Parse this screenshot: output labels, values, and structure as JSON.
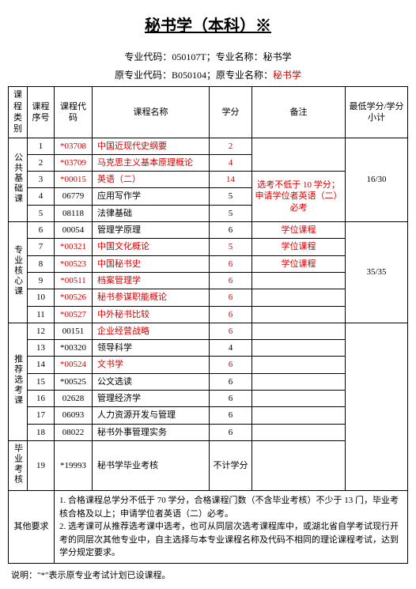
{
  "title": "秘书学（本科）※",
  "meta": {
    "line1": "专业代码：050107T；专业名称：秘书学",
    "line2_prefix": "原专业代码：B050104；原专业名称：",
    "line2_red": "秘书学"
  },
  "headers": {
    "type": "课程类别",
    "seq": "课程序号",
    "code": "课程代码",
    "name": "课程名称",
    "credit": "学分",
    "remark": "备注",
    "min": "最低学分/学分小计"
  },
  "groups": [
    {
      "label": "公共基础课",
      "min": "16/30",
      "remark_span": "选考不低于 10 学分；申请学位者英语（二）必考",
      "rows": [
        {
          "seq": "1",
          "code": "*03708",
          "name": "中国近现代史纲要",
          "credit": "2",
          "red": true
        },
        {
          "seq": "2",
          "code": "*03709",
          "name": "马克思主义基本原理概论",
          "credit": "4",
          "red": true
        },
        {
          "seq": "3",
          "code": "*00015",
          "name": "英语（二）",
          "credit": "14",
          "red": true
        },
        {
          "seq": "4",
          "code": "06779",
          "name": "应用写作学",
          "credit": "5",
          "red": false
        },
        {
          "seq": "5",
          "code": "08118",
          "name": "法律基础",
          "credit": "5",
          "red": false
        }
      ]
    },
    {
      "label": "专业核心课",
      "min": "35/35",
      "rows": [
        {
          "seq": "6",
          "code": "00054",
          "name": "管理学原理",
          "credit": "6",
          "remark": "学位课程",
          "red": false,
          "remark_red": true
        },
        {
          "seq": "7",
          "code": "*00321",
          "name": "中国文化概论",
          "credit": "5",
          "remark": "学位课程",
          "red": true,
          "remark_red": true
        },
        {
          "seq": "8",
          "code": "*00523",
          "name": "中国秘书史",
          "credit": "6",
          "remark": "学位课程",
          "red": true,
          "remark_red": true
        },
        {
          "seq": "9",
          "code": "*00511",
          "name": "档案管理学",
          "credit": "6",
          "remark": "",
          "red": true
        },
        {
          "seq": "10",
          "code": "*00526",
          "name": "秘书参谋职能概论",
          "credit": "6",
          "remark": "",
          "red": true
        },
        {
          "seq": "11",
          "code": "*00527",
          "name": "中外秘书比较",
          "credit": "6",
          "remark": "",
          "red": true
        }
      ]
    },
    {
      "label": "推荐选考课",
      "min": "",
      "rows": [
        {
          "seq": "12",
          "code": "00151",
          "name": "企业经营战略",
          "credit": "6",
          "red": false,
          "name_red": true,
          "credit_red": true
        },
        {
          "seq": "13",
          "code": "*00320",
          "name": "领导科学",
          "credit": "4",
          "red": false
        },
        {
          "seq": "14",
          "code": "*00524",
          "name": "文书学",
          "credit": "6",
          "red": true
        },
        {
          "seq": "15",
          "code": "*00525",
          "name": "公文选读",
          "credit": "6",
          "red": false
        },
        {
          "seq": "16",
          "code": "02628",
          "name": "管理经济学",
          "credit": "6",
          "red": false
        },
        {
          "seq": "17",
          "code": "06093",
          "name": "人力资源开发与管理",
          "credit": "6",
          "red": false
        },
        {
          "seq": "18",
          "code": "08022",
          "name": "秘书外事管理实务",
          "credit": "6",
          "red": false
        }
      ]
    },
    {
      "label": "毕业考核",
      "min": "",
      "rows": [
        {
          "seq": "19",
          "code": "*19993",
          "name": "秘书学毕业考核",
          "credit": "不计学分",
          "red": false
        }
      ]
    }
  ],
  "other": {
    "label": "其他要求",
    "item1": "1. 合格课程总学分不低于 70 学分，合格课程门数（不含毕业考核）不少于 13 门，毕业考核合格及以上；申请学位者英语（二）必考。",
    "item2": "2. 选考课可从推荐选考课中选考，也可从同层次选考课程库中，或湖北省自学考试现行开考的同层次其他专业中，自主选择与本专业课程名称及代码不相同的理论课程考试，达到学分规定要求。"
  },
  "footnote": "说明：\"*\"表示原专业考试计划已设课程。"
}
